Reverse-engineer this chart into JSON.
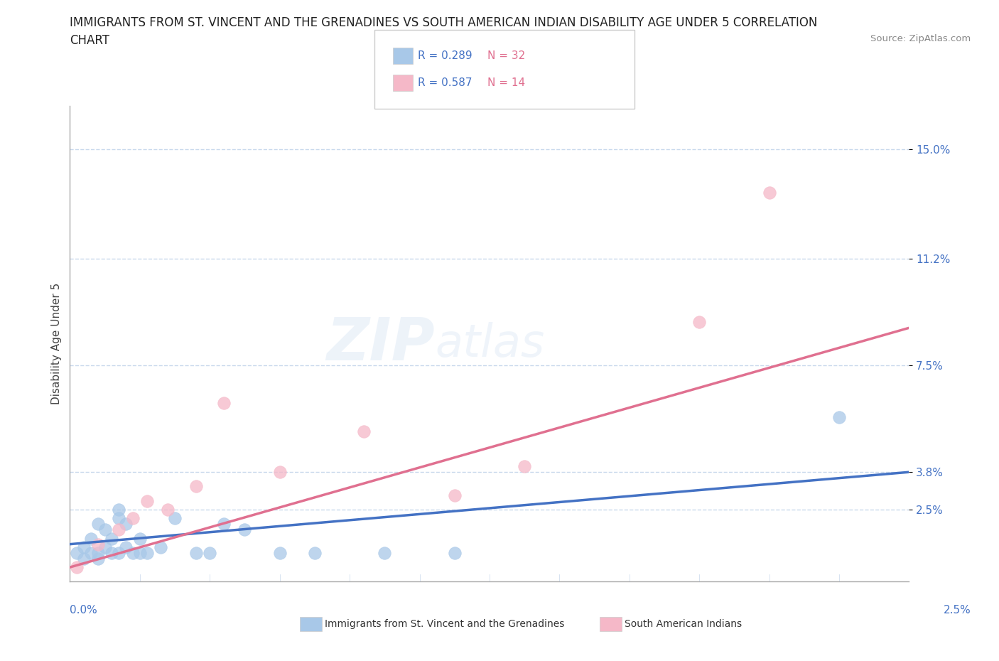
{
  "title_line1": "IMMIGRANTS FROM ST. VINCENT AND THE GRENADINES VS SOUTH AMERICAN INDIAN DISABILITY AGE UNDER 5 CORRELATION",
  "title_line2": "CHART",
  "source": "Source: ZipAtlas.com",
  "ylabel_label": "Disability Age Under 5",
  "legend_label1": "Immigrants from St. Vincent and the Grenadines",
  "legend_label2": "South American Indians",
  "legend_r1": "R = 0.289",
  "legend_n1": "N = 32",
  "legend_r2": "R = 0.587",
  "legend_n2": "N = 14",
  "color_blue_scatter": "#a8c8e8",
  "color_pink_scatter": "#f5b8c8",
  "line_color_blue": "#4472c4",
  "line_color_pink": "#e07090",
  "legend_r_color": "#4472c4",
  "legend_n_color": "#e07090",
  "ytick_labels": [
    "2.5%",
    "3.8%",
    "7.5%",
    "11.2%",
    "15.0%"
  ],
  "ytick_values": [
    0.025,
    0.038,
    0.075,
    0.112,
    0.15
  ],
  "xtick_left_label": "0.0%",
  "xtick_right_label": "2.5%",
  "xlim": [
    0.0,
    0.12
  ],
  "ylim": [
    0.0,
    0.165
  ],
  "blue_scatter_x": [
    0.001,
    0.002,
    0.002,
    0.003,
    0.003,
    0.004,
    0.004,
    0.004,
    0.005,
    0.005,
    0.006,
    0.006,
    0.007,
    0.007,
    0.007,
    0.008,
    0.008,
    0.009,
    0.01,
    0.01,
    0.011,
    0.013,
    0.015,
    0.018,
    0.02,
    0.022,
    0.025,
    0.03,
    0.035,
    0.045,
    0.055,
    0.11
  ],
  "blue_scatter_y": [
    0.01,
    0.008,
    0.012,
    0.01,
    0.015,
    0.008,
    0.02,
    0.01,
    0.018,
    0.012,
    0.015,
    0.01,
    0.025,
    0.01,
    0.022,
    0.012,
    0.02,
    0.01,
    0.015,
    0.01,
    0.01,
    0.012,
    0.022,
    0.01,
    0.01,
    0.02,
    0.018,
    0.01,
    0.01,
    0.01,
    0.01,
    0.057
  ],
  "pink_scatter_x": [
    0.001,
    0.004,
    0.007,
    0.009,
    0.011,
    0.014,
    0.018,
    0.022,
    0.03,
    0.042,
    0.055,
    0.065,
    0.09,
    0.1
  ],
  "pink_scatter_y": [
    0.005,
    0.013,
    0.018,
    0.022,
    0.028,
    0.025,
    0.033,
    0.062,
    0.038,
    0.052,
    0.03,
    0.04,
    0.09,
    0.135
  ],
  "blue_line_x0": 0.0,
  "blue_line_x1": 0.12,
  "blue_line_y0": 0.013,
  "blue_line_y1": 0.038,
  "pink_line_x0": 0.0,
  "pink_line_x1": 0.12,
  "pink_line_y0": 0.005,
  "pink_line_y1": 0.088,
  "background_color": "#ffffff",
  "grid_color": "#c8d8ec",
  "title_fontsize": 12,
  "axis_label_fontsize": 11,
  "tick_fontsize": 11,
  "tick_color": "#4472c4"
}
